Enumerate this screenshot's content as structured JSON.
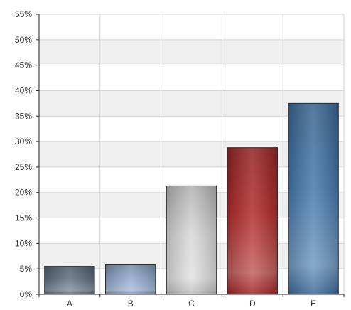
{
  "chart_data": {
    "type": "bar",
    "categories": [
      "A",
      "B",
      "C",
      "D",
      "E"
    ],
    "values": [
      5.5,
      5.8,
      21.3,
      28.8,
      37.5
    ],
    "unit": "%",
    "ylim": [
      0,
      55
    ],
    "ytick_step": 5,
    "ytick_labels": [
      "0%",
      "5%",
      "10%",
      "15%",
      "20%",
      "25%",
      "30%",
      "35%",
      "40%",
      "45%",
      "50%",
      "55%"
    ],
    "grid": true,
    "legend": "none",
    "bar_colors": [
      "#5e6f80",
      "#8fa9cc",
      "#d8d8d8",
      "#b22a2a",
      "#4579ad"
    ]
  }
}
